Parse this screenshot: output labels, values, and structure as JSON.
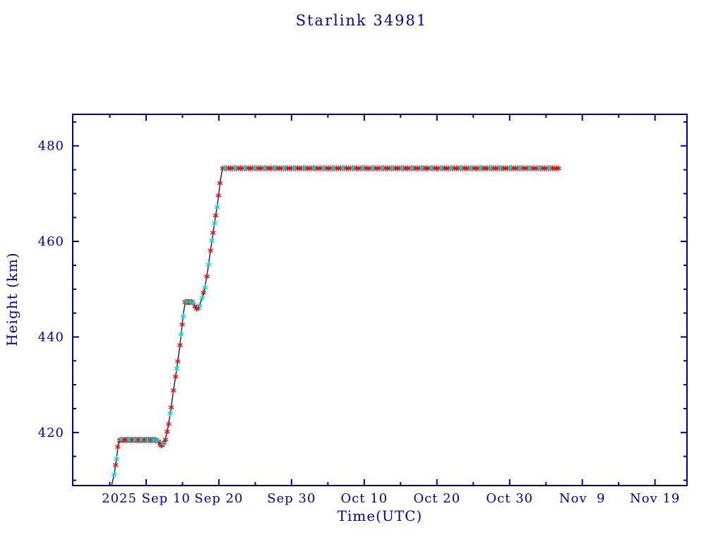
{
  "page": {
    "background": "#ffffff"
  },
  "chart_data": {
    "type": "line",
    "title": "Starlink 34981",
    "xlabel": "Time(UTC)",
    "ylabel": "Height (km)",
    "x_unit": "days since 2025 Aug 31 00:00 UTC",
    "xlim": [
      -0.1,
      84.4
    ],
    "ylim": [
      408.9,
      486.6
    ],
    "grid": false,
    "legend": null,
    "colors": {
      "axis": "#00009b",
      "line": "#00008b",
      "red_marker": "#dd1111",
      "cyan_marker": "#00d8d8",
      "text": "#0000a0"
    },
    "x_major_ticks": [
      {
        "t": 10,
        "label": "2025 Sep 10"
      },
      {
        "t": 20,
        "label": "Sep 20"
      },
      {
        "t": 30,
        "label": "Sep 30"
      },
      {
        "t": 40,
        "label": "Oct 10"
      },
      {
        "t": 50,
        "label": "Oct 20"
      },
      {
        "t": 60,
        "label": "Oct 30"
      },
      {
        "t": 70,
        "label": "Nov  9"
      },
      {
        "t": 80,
        "label": "Nov 19"
      }
    ],
    "x_minor_ticks": [
      5,
      15,
      25,
      35,
      45,
      55,
      65,
      75
    ],
    "y_major_ticks": [
      {
        "v": 420,
        "label": "420"
      },
      {
        "v": 440,
        "label": "440"
      },
      {
        "v": 460,
        "label": "460"
      },
      {
        "v": 480,
        "label": "480"
      }
    ],
    "y_minor_ticks": [
      410,
      415,
      425,
      430,
      435,
      445,
      450,
      455,
      465,
      470,
      475,
      485
    ],
    "line_points": [
      [
        5.2,
        408.5
      ],
      [
        5.35,
        409.6
      ],
      [
        5.6,
        411.2
      ],
      [
        5.8,
        413.2
      ],
      [
        5.95,
        414.6
      ],
      [
        6.1,
        417.0
      ],
      [
        6.3,
        418.2
      ],
      [
        6.6,
        418.45
      ],
      [
        7.5,
        418.5
      ],
      [
        8.5,
        418.45
      ],
      [
        9.5,
        418.5
      ],
      [
        10.5,
        418.45
      ],
      [
        11.2,
        418.45
      ],
      [
        11.55,
        418.3
      ],
      [
        11.8,
        417.9
      ],
      [
        12.05,
        417.3
      ],
      [
        12.3,
        417.6
      ],
      [
        12.55,
        418.3
      ],
      [
        12.8,
        419.5
      ],
      [
        13.1,
        421.8
      ],
      [
        13.45,
        425.3
      ],
      [
        13.75,
        428.8
      ],
      [
        14.05,
        431.7
      ],
      [
        14.35,
        434.9
      ],
      [
        14.65,
        438.3
      ],
      [
        14.95,
        442.6
      ],
      [
        15.15,
        445.2
      ],
      [
        15.35,
        447.0
      ],
      [
        15.6,
        447.4
      ],
      [
        15.9,
        447.35
      ],
      [
        16.2,
        447.3
      ],
      [
        16.5,
        446.9
      ],
      [
        16.75,
        446.3
      ],
      [
        17.0,
        445.9
      ],
      [
        17.2,
        446.15
      ],
      [
        17.45,
        447.1
      ],
      [
        17.7,
        448.2
      ],
      [
        17.95,
        449.5
      ],
      [
        18.2,
        451.4
      ],
      [
        18.5,
        454.2
      ],
      [
        18.8,
        457.6
      ],
      [
        19.05,
        460.2
      ],
      [
        19.3,
        462.7
      ],
      [
        19.55,
        465.3
      ],
      [
        19.8,
        467.7
      ],
      [
        20.0,
        470.0
      ],
      [
        20.2,
        472.6
      ],
      [
        20.4,
        474.5
      ],
      [
        20.55,
        475.2
      ],
      [
        20.8,
        475.4
      ],
      [
        66.8,
        475.4
      ]
    ],
    "markers": {
      "red": [
        [
          5.8,
          413.2
        ],
        [
          6.1,
          417.0
        ],
        [
          6.35,
          418.3
        ],
        [
          11.7,
          418.1
        ],
        [
          11.9,
          417.6
        ],
        [
          12.05,
          417.3
        ],
        [
          12.2,
          417.4
        ],
        [
          12.45,
          417.9
        ],
        [
          12.65,
          418.5
        ],
        [
          12.9,
          420.2
        ],
        [
          13.1,
          421.8
        ],
        [
          13.45,
          425.3
        ],
        [
          13.75,
          428.8
        ],
        [
          14.05,
          431.7
        ],
        [
          14.35,
          434.9
        ],
        [
          14.65,
          438.3
        ],
        [
          14.95,
          442.6
        ],
        [
          16.7,
          446.4
        ],
        [
          16.95,
          445.9
        ],
        [
          17.15,
          446.1
        ],
        [
          17.9,
          449.3
        ],
        [
          18.35,
          452.7
        ],
        [
          18.85,
          458.1
        ],
        [
          19.2,
          461.8
        ],
        [
          19.55,
          465.4
        ],
        [
          19.95,
          469.6
        ],
        [
          20.15,
          472.2
        ]
      ],
      "cyan": [
        [
          5.6,
          411.2
        ],
        [
          5.95,
          414.5
        ],
        [
          6.55,
          418.6
        ],
        [
          7.6,
          418.5
        ],
        [
          8.45,
          418.45
        ],
        [
          9.3,
          418.5
        ],
        [
          10.15,
          418.45
        ],
        [
          10.95,
          418.45
        ],
        [
          11.5,
          418.35
        ],
        [
          12.3,
          417.7
        ],
        [
          13.3,
          424.0
        ],
        [
          14.2,
          433.4
        ],
        [
          14.8,
          440.6
        ],
        [
          15.1,
          444.3
        ],
        [
          15.5,
          447.4
        ],
        [
          16.1,
          447.35
        ],
        [
          16.45,
          447.0
        ],
        [
          17.35,
          446.6
        ],
        [
          17.7,
          448.2
        ],
        [
          18.1,
          450.4
        ],
        [
          18.6,
          455.2
        ],
        [
          19.05,
          460.2
        ],
        [
          19.4,
          463.8
        ],
        [
          19.75,
          467.2
        ]
      ]
    },
    "marker_runs": [
      {
        "color": "red",
        "from": 6.5,
        "to": 11.35,
        "step": 0.16,
        "h": 418.45
      },
      {
        "color": "red",
        "from": 15.35,
        "to": 16.45,
        "step": 0.14,
        "h": 447.3
      },
      {
        "color": "red",
        "from": 20.55,
        "to": 66.8,
        "step": 0.27,
        "h": 475.3
      },
      {
        "color": "cyan",
        "from": 20.9,
        "to": 66.5,
        "step": 1.35,
        "h": 475.35
      }
    ]
  }
}
